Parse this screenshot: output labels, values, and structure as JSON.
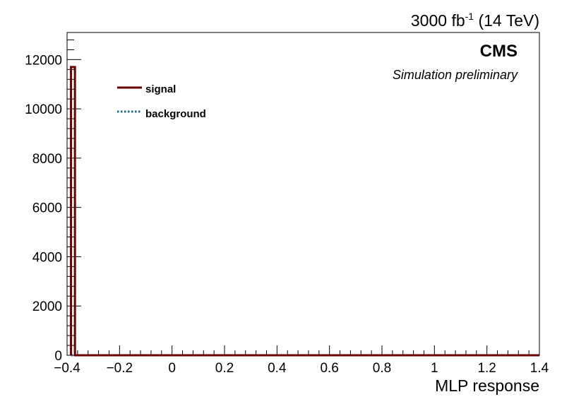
{
  "chart_data": {
    "type": "histogram",
    "header": {
      "main": "3000 fb",
      "sup": "-1",
      "tail": " (14 TeV)"
    },
    "experiment": "CMS",
    "subtitle": "Simulation preliminary",
    "xlabel": "MLP response",
    "ylabel": "",
    "xlim": [
      -0.4,
      1.4
    ],
    "ylim": [
      0,
      13100
    ],
    "x_ticks": [
      -0.4,
      -0.2,
      0,
      0.2,
      0.4,
      0.6,
      0.8,
      1,
      1.2,
      1.4
    ],
    "x_tick_labels": [
      "−0.4",
      "−0.2",
      "0",
      "0.2",
      "0.4",
      "0.6",
      "0.8",
      "1",
      "1.2",
      "1.4"
    ],
    "y_ticks": [
      0,
      2000,
      4000,
      6000,
      8000,
      10000,
      12000
    ],
    "y_tick_labels": [
      "0",
      "2000",
      "4000",
      "6000",
      "8000",
      "10000",
      "12000"
    ],
    "legend": [
      {
        "label": "signal",
        "color": "#6b0000",
        "style": "solid"
      },
      {
        "label": "background",
        "color": "#1a6f8f",
        "style": "dotted"
      }
    ],
    "series": [
      {
        "name": "signal",
        "color": "#6b0000",
        "bins": [
          {
            "x0": -0.385,
            "x1": -0.37,
            "value": 11700
          },
          {
            "x0": -0.37,
            "x1": 1.4,
            "value": 0
          }
        ]
      },
      {
        "name": "background",
        "color": "#1a6f8f",
        "bins": [
          {
            "x0": -0.385,
            "x1": 1.4,
            "value": 0
          }
        ]
      }
    ]
  }
}
